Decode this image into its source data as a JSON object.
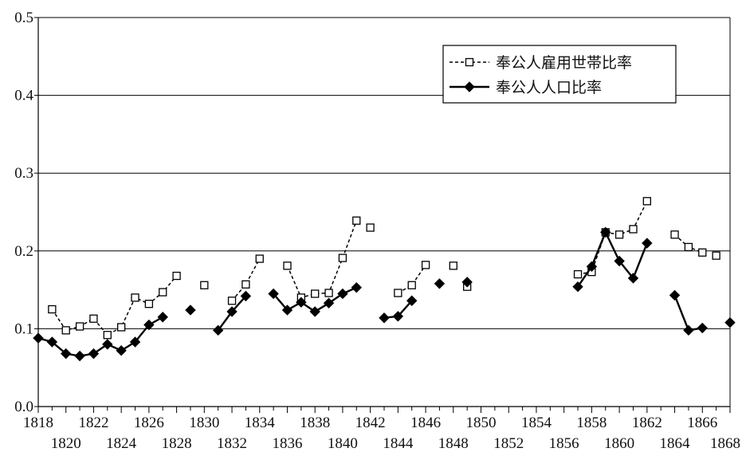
{
  "chart_data": {
    "type": "line",
    "title": "",
    "xlabel": "",
    "ylabel": "",
    "xlim": [
      1818,
      1868
    ],
    "ylim": [
      0,
      0.5
    ],
    "y_ticks": [
      "0.0",
      "0.1",
      "0.2",
      "0.3",
      "0.4",
      "0.5"
    ],
    "x_ticks_top_row": [
      "1818",
      "1822",
      "1826",
      "1830",
      "1834",
      "1838",
      "1842",
      "1846",
      "1850",
      "1854",
      "1858",
      "1862",
      "1866"
    ],
    "x_ticks_bottom_row": [
      "1820",
      "1824",
      "1828",
      "1832",
      "1836",
      "1840",
      "1844",
      "1848",
      "1852",
      "1856",
      "1860",
      "1864",
      "1868"
    ],
    "grid": "horizontal",
    "legend_position": "top-right",
    "series": [
      {
        "name": "奉公人雇用世帯比率",
        "style": "dashed",
        "marker": "open-square",
        "color": "#000000",
        "points": [
          [
            1819,
            0.125
          ],
          [
            1820,
            0.098
          ],
          [
            1821,
            0.103
          ],
          [
            1822,
            0.113
          ],
          [
            1823,
            0.092
          ],
          [
            1824,
            0.102
          ],
          [
            1825,
            0.14
          ],
          [
            1826,
            0.132
          ],
          [
            1827,
            0.147
          ],
          [
            1828,
            0.168
          ],
          [
            1830,
            0.156
          ],
          [
            1832,
            0.136
          ],
          [
            1833,
            0.157
          ],
          [
            1834,
            0.19
          ],
          [
            1836,
            0.181
          ],
          [
            1837,
            0.14
          ],
          [
            1838,
            0.145
          ],
          [
            1839,
            0.146
          ],
          [
            1840,
            0.191
          ],
          [
            1841,
            0.239
          ],
          [
            1842,
            0.23
          ],
          [
            1844,
            0.146
          ],
          [
            1845,
            0.156
          ],
          [
            1846,
            0.182
          ],
          [
            1848,
            0.181
          ],
          [
            1849,
            0.154
          ],
          [
            1857,
            0.17
          ],
          [
            1858,
            0.173
          ],
          [
            1859,
            0.224
          ],
          [
            1860,
            0.221
          ],
          [
            1861,
            0.228
          ],
          [
            1862,
            0.264
          ],
          [
            1864,
            0.221
          ],
          [
            1865,
            0.205
          ],
          [
            1866,
            0.198
          ],
          [
            1867,
            0.194
          ]
        ],
        "segments": [
          [
            0,
            9
          ],
          [
            10,
            10
          ],
          [
            11,
            13
          ],
          [
            14,
            19
          ],
          [
            20,
            20
          ],
          [
            21,
            23
          ],
          [
            24,
            24
          ],
          [
            25,
            25
          ],
          [
            26,
            31
          ],
          [
            32,
            34
          ],
          [
            35,
            35
          ]
        ]
      },
      {
        "name": "奉公人人口比率",
        "style": "solid",
        "marker": "filled-diamond",
        "color": "#000000",
        "points": [
          [
            1818,
            0.088
          ],
          [
            1819,
            0.083
          ],
          [
            1820,
            0.068
          ],
          [
            1821,
            0.065
          ],
          [
            1822,
            0.068
          ],
          [
            1823,
            0.08
          ],
          [
            1824,
            0.072
          ],
          [
            1825,
            0.083
          ],
          [
            1826,
            0.105
          ],
          [
            1827,
            0.115
          ],
          [
            1829,
            0.124
          ],
          [
            1831,
            0.098
          ],
          [
            1832,
            0.122
          ],
          [
            1833,
            0.142
          ],
          [
            1835,
            0.145
          ],
          [
            1836,
            0.124
          ],
          [
            1837,
            0.134
          ],
          [
            1838,
            0.122
          ],
          [
            1839,
            0.133
          ],
          [
            1840,
            0.145
          ],
          [
            1841,
            0.153
          ],
          [
            1843,
            0.114
          ],
          [
            1844,
            0.116
          ],
          [
            1845,
            0.136
          ],
          [
            1847,
            0.158
          ],
          [
            1849,
            0.16
          ],
          [
            1857,
            0.154
          ],
          [
            1858,
            0.18
          ],
          [
            1859,
            0.224
          ],
          [
            1860,
            0.187
          ],
          [
            1861,
            0.165
          ],
          [
            1862,
            0.21
          ],
          [
            1864,
            0.143
          ],
          [
            1865,
            0.098
          ],
          [
            1866,
            0.101
          ],
          [
            1868,
            0.108
          ]
        ],
        "segments": [
          [
            0,
            9
          ],
          [
            10,
            10
          ],
          [
            11,
            13
          ],
          [
            14,
            20
          ],
          [
            21,
            23
          ],
          [
            24,
            24
          ],
          [
            25,
            25
          ],
          [
            26,
            31
          ],
          [
            32,
            34
          ],
          [
            35,
            35
          ]
        ]
      }
    ]
  }
}
